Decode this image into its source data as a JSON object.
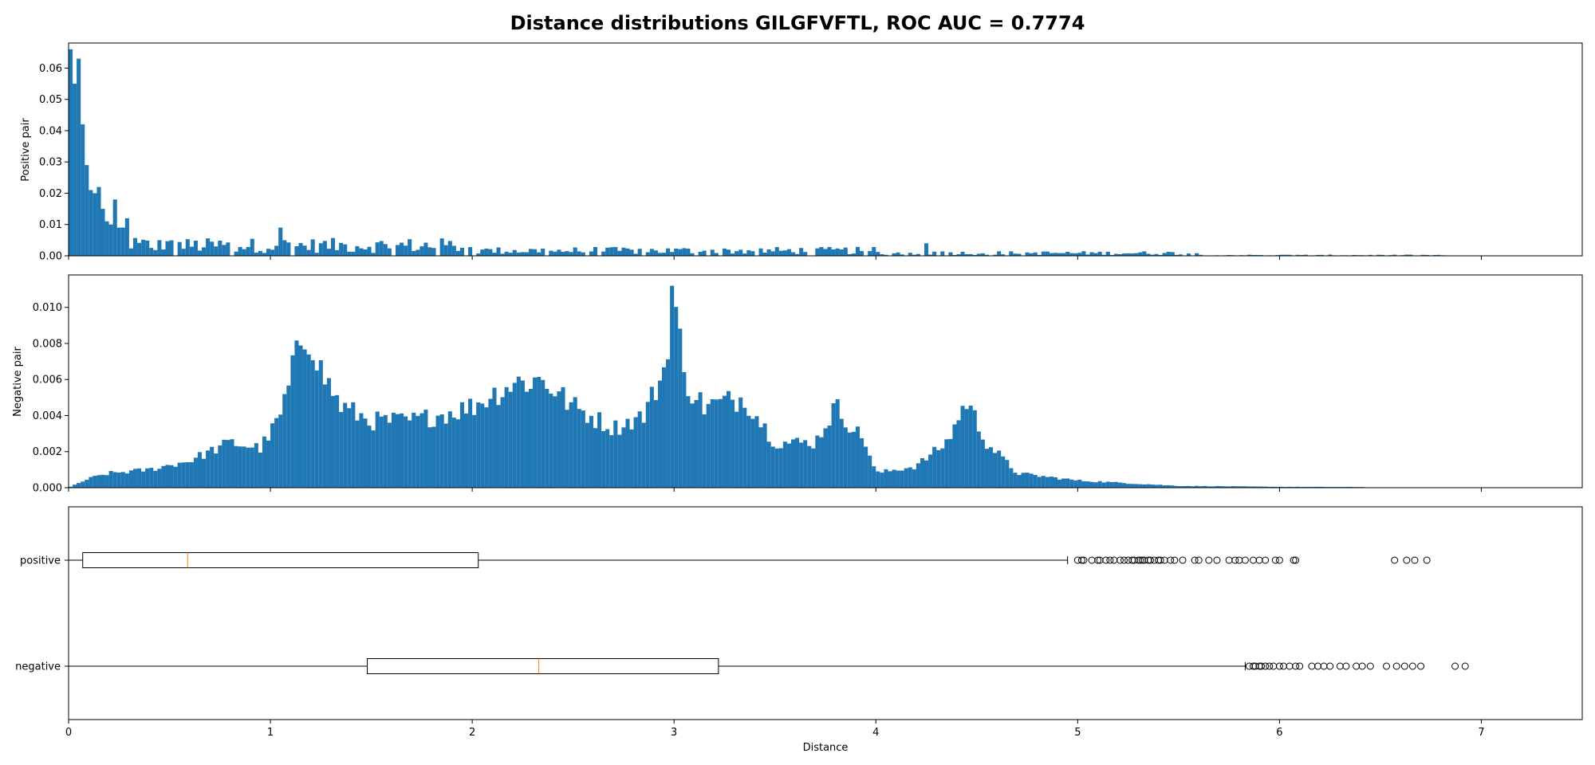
{
  "figure": {
    "title": "Distance distributions GILGFVFTL, ROC AUC = 0.7774",
    "colors": {
      "bar": "#1f77b4",
      "median": "#ff7f0e",
      "box": "#000000",
      "background": "#ffffff"
    }
  },
  "chart_data": [
    {
      "type": "histogram",
      "ylabel": "Positive pair",
      "xlim": [
        0,
        7.5
      ],
      "ylim": [
        0,
        0.068
      ],
      "yticks": [
        "0.00",
        "0.01",
        "0.02",
        "0.03",
        "0.04",
        "0.05",
        "0.06"
      ],
      "bin_width": 0.02,
      "peaks_note_excluded": true,
      "approx_heights_by_distance": [
        [
          0.01,
          0.066
        ],
        [
          0.03,
          0.055
        ],
        [
          0.05,
          0.063
        ],
        [
          0.07,
          0.042
        ],
        [
          0.09,
          0.029
        ],
        [
          0.11,
          0.021
        ],
        [
          0.13,
          0.02
        ],
        [
          0.15,
          0.022
        ],
        [
          0.17,
          0.015
        ],
        [
          0.19,
          0.011
        ],
        [
          0.21,
          0.01
        ],
        [
          0.23,
          0.018
        ],
        [
          0.25,
          0.009
        ],
        [
          0.27,
          0.009
        ],
        [
          0.3,
          0.002
        ],
        [
          0.45,
          0.005
        ],
        [
          0.6,
          0.006
        ],
        [
          0.7,
          0.007
        ],
        [
          1.05,
          0.009
        ],
        [
          1.4,
          0.005
        ],
        [
          1.8,
          0.004
        ],
        [
          2.05,
          0.002
        ],
        [
          2.5,
          0.004
        ],
        [
          2.8,
          0.008
        ],
        [
          3.3,
          0.004
        ],
        [
          3.5,
          0.005
        ],
        [
          4.25,
          0.004
        ],
        [
          4.5,
          0.003
        ],
        [
          5.3,
          0.004
        ],
        [
          6.0,
          0.0005
        ]
      ]
    },
    {
      "type": "histogram",
      "ylabel": "Negative pair",
      "xlim": [
        0,
        7.5
      ],
      "ylim": [
        0,
        0.0118
      ],
      "yticks": [
        "0.000",
        "0.002",
        "0.004",
        "0.006",
        "0.008",
        "0.010"
      ],
      "bin_width": 0.02,
      "approx_density_profile": [
        [
          0.0,
          0.0
        ],
        [
          0.1,
          0.0005
        ],
        [
          0.2,
          0.0008
        ],
        [
          0.4,
          0.001
        ],
        [
          0.6,
          0.0015
        ],
        [
          0.8,
          0.0025
        ],
        [
          0.95,
          0.0022
        ],
        [
          1.0,
          0.003
        ],
        [
          1.05,
          0.004
        ],
        [
          1.1,
          0.006
        ],
        [
          1.15,
          0.0082
        ],
        [
          1.2,
          0.0085
        ],
        [
          1.25,
          0.0065
        ],
        [
          1.35,
          0.0045
        ],
        [
          1.5,
          0.0037
        ],
        [
          1.7,
          0.0037
        ],
        [
          1.9,
          0.0042
        ],
        [
          2.0,
          0.0045
        ],
        [
          2.2,
          0.0058
        ],
        [
          2.35,
          0.006
        ],
        [
          2.5,
          0.0045
        ],
        [
          2.7,
          0.0033
        ],
        [
          2.85,
          0.004
        ],
        [
          2.95,
          0.0065
        ],
        [
          3.0,
          0.011
        ],
        [
          3.05,
          0.006
        ],
        [
          3.15,
          0.0045
        ],
        [
          3.35,
          0.005
        ],
        [
          3.5,
          0.0025
        ],
        [
          3.7,
          0.0025
        ],
        [
          3.8,
          0.0045
        ],
        [
          3.95,
          0.0025
        ],
        [
          4.0,
          0.0008
        ],
        [
          4.2,
          0.0012
        ],
        [
          4.35,
          0.0025
        ],
        [
          4.45,
          0.0048
        ],
        [
          4.55,
          0.0025
        ],
        [
          4.7,
          0.0008
        ],
        [
          5.0,
          0.0004
        ],
        [
          5.5,
          0.0001
        ],
        [
          6.0,
          5e-05
        ],
        [
          7.5,
          0.0
        ]
      ]
    },
    {
      "type": "boxplot",
      "xlabel": "Distance",
      "xlim": [
        0,
        7.5
      ],
      "xticks": [
        "0",
        "1",
        "2",
        "3",
        "4",
        "5",
        "6",
        "7"
      ],
      "categories": [
        "positive",
        "negative"
      ],
      "series": [
        {
          "name": "positive",
          "whisker_low": 0.0,
          "q1": 0.07,
          "median": 0.59,
          "q3": 2.03,
          "whisker_high": 4.95,
          "fliers": [
            5.0,
            5.02,
            5.03,
            5.07,
            5.1,
            5.11,
            5.14,
            5.16,
            5.18,
            5.21,
            5.23,
            5.25,
            5.27,
            5.28,
            5.3,
            5.31,
            5.32,
            5.33,
            5.35,
            5.36,
            5.38,
            5.4,
            5.41,
            5.43,
            5.46,
            5.48,
            5.52,
            5.58,
            5.6,
            5.65,
            5.69,
            5.75,
            5.78,
            5.8,
            5.83,
            5.87,
            5.9,
            5.93,
            5.98,
            6.0,
            6.07,
            6.08,
            6.57,
            6.63,
            6.67,
            6.73
          ]
        },
        {
          "name": "negative",
          "whisker_low": 0.0,
          "q1": 1.48,
          "median": 2.33,
          "q3": 3.22,
          "whisker_high": 5.83,
          "fliers": [
            5.85,
            5.87,
            5.88,
            5.9,
            5.91,
            5.93,
            5.95,
            5.97,
            6.0,
            6.02,
            6.05,
            6.08,
            6.1,
            6.16,
            6.19,
            6.22,
            6.25,
            6.3,
            6.33,
            6.38,
            6.41,
            6.45,
            6.53,
            6.58,
            6.62,
            6.66,
            6.7,
            6.87,
            6.92
          ]
        }
      ]
    }
  ]
}
